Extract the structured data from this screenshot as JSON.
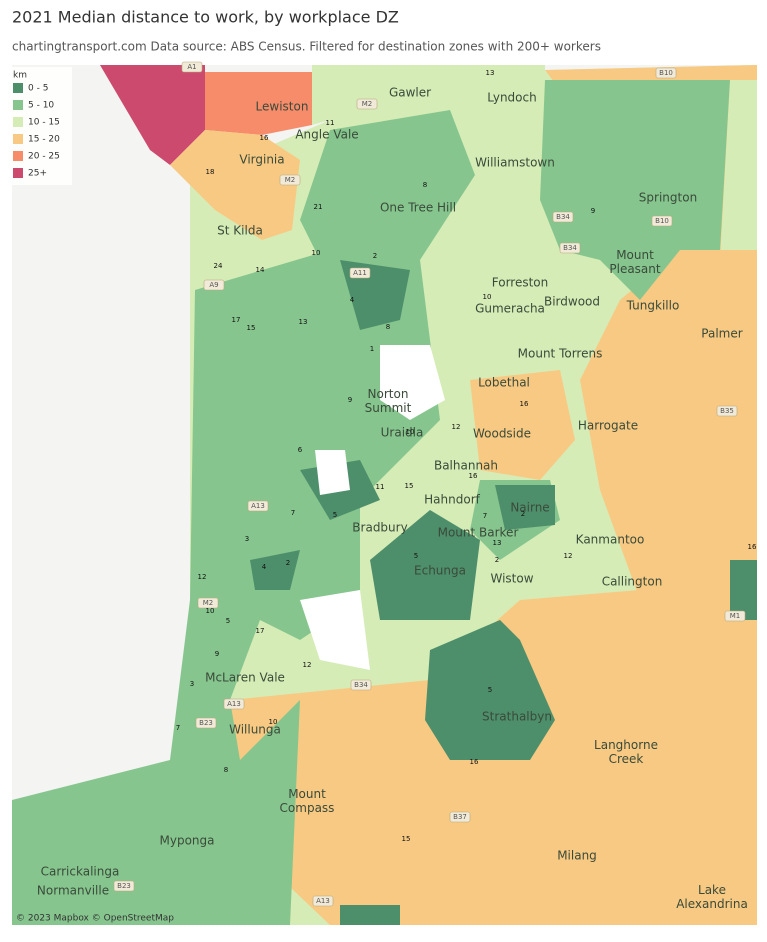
{
  "header": {
    "title": "2021 Median distance to work, by workplace DZ",
    "subtitle": "chartingtransport.com  Data source: ABS Census. Filtered for destination zones with 200+ workers"
  },
  "legend": {
    "title": "km",
    "items": [
      {
        "label": "0 - 5",
        "color": "#4e8f6b"
      },
      {
        "label": "5 - 10",
        "color": "#86c68e"
      },
      {
        "label": "10 - 15",
        "color": "#d6ecb6"
      },
      {
        "label": "15 - 20",
        "color": "#f8c983"
      },
      {
        "label": "20 - 25",
        "color": "#f78c6b"
      },
      {
        "label": "25+",
        "color": "#cc4a6d"
      }
    ]
  },
  "places": [
    "Gawler",
    "Lyndoch",
    "Lewiston",
    "Angle Vale",
    "Virginia",
    "Williamstown",
    "Springton",
    "One Tree Hill",
    "St Kilda",
    "Mount Pleasant",
    "Forreston",
    "Birdwood",
    "Gumeracha",
    "Tungkillo",
    "Palmer",
    "Mount Torrens",
    "Lobethal",
    "Norton Summit",
    "Uraidla",
    "Woodside",
    "Harrogate",
    "Balhannah",
    "Hahndorf",
    "Nairne",
    "Mount Barker",
    "Kanmantoo",
    "Bradbury",
    "Echunga",
    "Wistow",
    "Callington",
    "McLaren Vale",
    "Willunga",
    "Strathalbyn",
    "Langhorne Creek",
    "Mount Compass",
    "Myponga",
    "Milang",
    "Carrickalinga",
    "Normanville",
    "Lake Alexandrina"
  ],
  "road_labels": [
    "A1",
    "M2",
    "M2",
    "B10",
    "B34",
    "B34",
    "B10",
    "A11",
    "A9",
    "A13",
    "B35",
    "M1",
    "B34",
    "A13",
    "B23",
    "B37",
    "B23",
    "A13",
    "M2"
  ],
  "zone_labels": [
    13,
    16,
    18,
    11,
    8,
    9,
    21,
    24,
    10,
    16,
    12,
    16,
    5,
    12,
    16,
    17,
    12,
    5,
    16,
    15,
    8,
    10,
    7,
    3,
    9,
    5,
    2,
    8,
    4,
    1,
    10,
    7,
    2,
    13,
    2,
    11,
    15,
    12,
    10,
    14,
    17,
    15,
    13,
    9,
    6,
    7,
    4,
    2,
    3,
    5,
    10
  ],
  "attribution": "© 2023 Mapbox © OpenStreetMap"
}
